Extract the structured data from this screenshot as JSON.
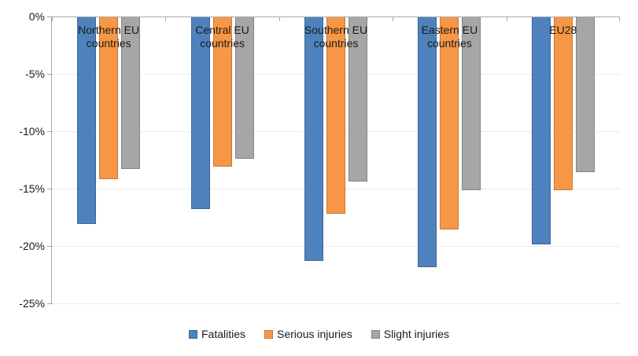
{
  "chart_data": {
    "type": "bar",
    "orientation": "vertical",
    "title": "",
    "xlabel": "",
    "ylabel": "",
    "categories": [
      "Northern EU countries",
      "Central EU countries",
      "Southern EU countries",
      "Eastern EU countries",
      "EU28"
    ],
    "series": [
      {
        "name": "Fatalities",
        "color": "#4f81bd",
        "border_color": "#3d6697",
        "values": [
          -18.0,
          -16.7,
          -21.2,
          -21.8,
          -19.8
        ]
      },
      {
        "name": "Serious injuries",
        "color": "#f79646",
        "border_color": "#c57a38",
        "values": [
          -14.1,
          -13.0,
          -17.1,
          -18.5,
          -15.1
        ]
      },
      {
        "name": "Slight injuries",
        "color": "#a6a6a6",
        "border_color": "#848484",
        "values": [
          -13.2,
          -12.3,
          -14.3,
          -15.1,
          -13.5
        ]
      }
    ],
    "y_axis": {
      "min": -25,
      "max": 0,
      "tick_step": 5,
      "tick_labels": [
        "0%",
        "-5%",
        "-10%",
        "-15%",
        "-20%",
        "-25%"
      ],
      "format": "percent"
    },
    "grid": "horizontal-dotted",
    "legend_position": "bottom",
    "axis_color": "#a6a6a6",
    "gridline_color": "#d9d9d9",
    "text_color": "#1a1a1a"
  }
}
